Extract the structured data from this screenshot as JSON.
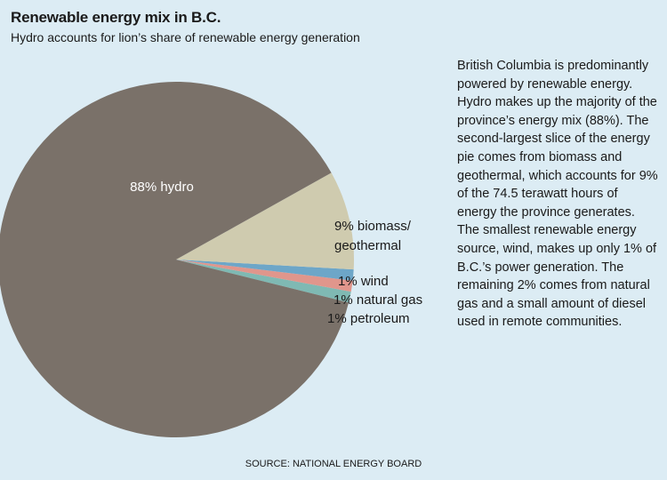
{
  "header": {
    "title": "Renewable energy mix in B.C.",
    "subtitle": "Hydro accounts for lion’s share of renewable energy generation"
  },
  "body_text": "British Columbia is predominantly powered by renewable energy. Hydro makes up the majority of the province’s energy mix (88%). The second-largest slice of the energy pie comes from biomass and geothermal, which accounts for 9% of the 74.5 terawatt hours of energy the province generates. The smallest renewable energy source, wind, makes up only 1% of B.C.’s power generation. The remaining 2% comes from natural gas and a small amount of diesel used in remote communities.",
  "source": "SOURCE: NATIONAL ENERGY BOARD",
  "colors": {
    "background": "#dcecf4",
    "hydro": "#7a7169",
    "biomass": "#cfcbaf",
    "wind": "#6da6c8",
    "natural_gas": "#e0968c",
    "petroleum": "#7fb9b3"
  },
  "chart_data": {
    "type": "pie",
    "title": "Renewable energy mix in B.C.",
    "subtitle": "Hydro accounts for lion’s share of renewable energy generation",
    "total": "74.5 terawatt hours",
    "slices": [
      {
        "label": "88% hydro",
        "value": 88,
        "color": "#7a7169"
      },
      {
        "label": "9% biomass/ geothermal",
        "value": 9,
        "color": "#cfcbaf"
      },
      {
        "label": "1% wind",
        "value": 1,
        "color": "#6da6c8"
      },
      {
        "label": "1% natural gas",
        "value": 1,
        "color": "#e0968c"
      },
      {
        "label": "1% petroleum",
        "value": 1,
        "color": "#7fb9b3"
      }
    ]
  }
}
